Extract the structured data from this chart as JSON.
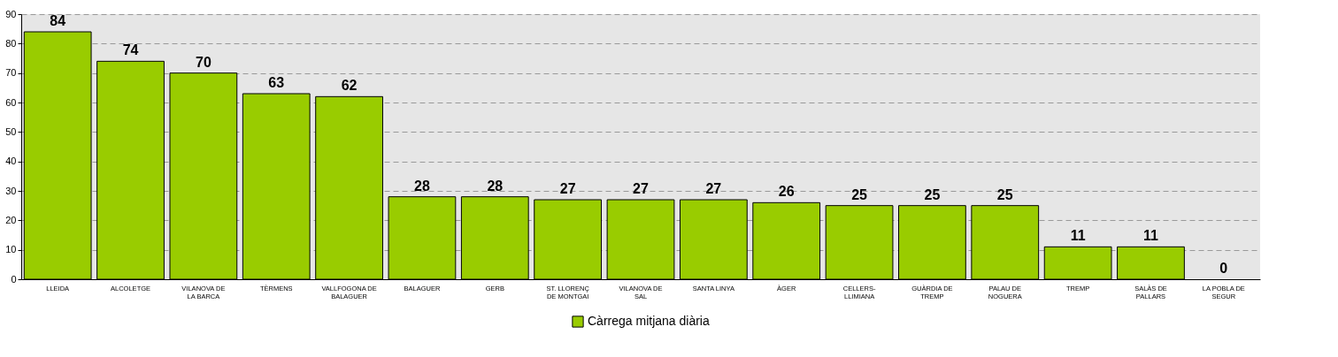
{
  "chart_data": {
    "type": "bar",
    "categories": [
      "LLEIDA",
      "ALCOLETGE",
      "VILANOVA DE LA BARCA",
      "TÈRMENS",
      "VALLFOGONA DE BALAGUER",
      "BALAGUER",
      "GERB",
      "ST. LLORENÇ DE MONTGAI",
      "VILANOVA DE SAL",
      "SANTA LINYA",
      "ÀGER",
      "CELLERS-LLIMIANA",
      "GUÀRDIA DE TREMP",
      "PALAU DE NOGUERA",
      "TREMP",
      "SALÀS DE PALLARS",
      "LA POBLA DE SEGUR"
    ],
    "series": [
      {
        "name": "Càrrega mitjana diària",
        "color": "#99cc00",
        "values": [
          84,
          74,
          70,
          63,
          62,
          28,
          28,
          27,
          27,
          27,
          26,
          25,
          25,
          25,
          11,
          11,
          0
        ]
      }
    ],
    "ylim": [
      0,
      90
    ],
    "yticks": [
      0,
      10,
      20,
      30,
      40,
      50,
      60,
      70,
      80,
      90
    ],
    "grid": "y",
    "legend": "bottom",
    "data_labels": true
  }
}
